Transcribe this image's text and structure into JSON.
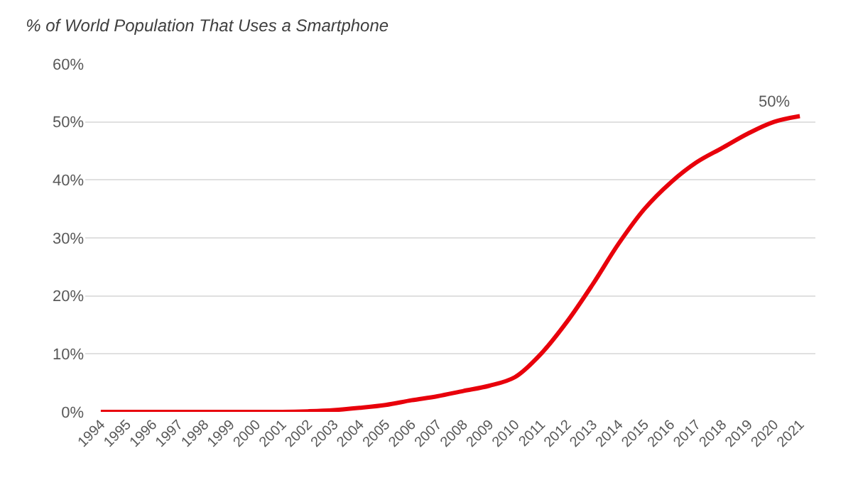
{
  "chart_data": {
    "type": "line",
    "title": "% of World Population That Uses a Smartphone",
    "categories": [
      "1994",
      "1995",
      "1996",
      "1997",
      "1998",
      "1999",
      "2000",
      "2001",
      "2002",
      "2003",
      "2004",
      "2005",
      "2006",
      "2007",
      "2008",
      "2009",
      "2010",
      "2011",
      "2012",
      "2013",
      "2014",
      "2015",
      "2016",
      "2017",
      "2018",
      "2019",
      "2020",
      "2021"
    ],
    "series": [
      {
        "color": "#e8000b",
        "values": [
          0,
          0,
          0,
          0,
          0,
          0,
          0,
          0,
          0.1,
          0.3,
          0.7,
          1.2,
          2.0,
          2.7,
          3.6,
          4.5,
          6.0,
          10,
          15.5,
          22,
          29,
          35,
          39.5,
          43,
          45.5,
          48,
          50,
          51
        ]
      }
    ],
    "ylim": [
      0,
      60
    ],
    "yticks": [
      {
        "value": 0,
        "label": "0%"
      },
      {
        "value": 10,
        "label": "10%"
      },
      {
        "value": 20,
        "label": "20%"
      },
      {
        "value": 30,
        "label": "30%"
      },
      {
        "value": 40,
        "label": "40%"
      },
      {
        "value": 50,
        "label": "50%"
      },
      {
        "value": 60,
        "label": "60%"
      }
    ],
    "annotations": [
      {
        "text": "50%",
        "x": "2020",
        "y": 50
      }
    ],
    "grid": "y",
    "marker": "none",
    "line_style": "solid"
  }
}
